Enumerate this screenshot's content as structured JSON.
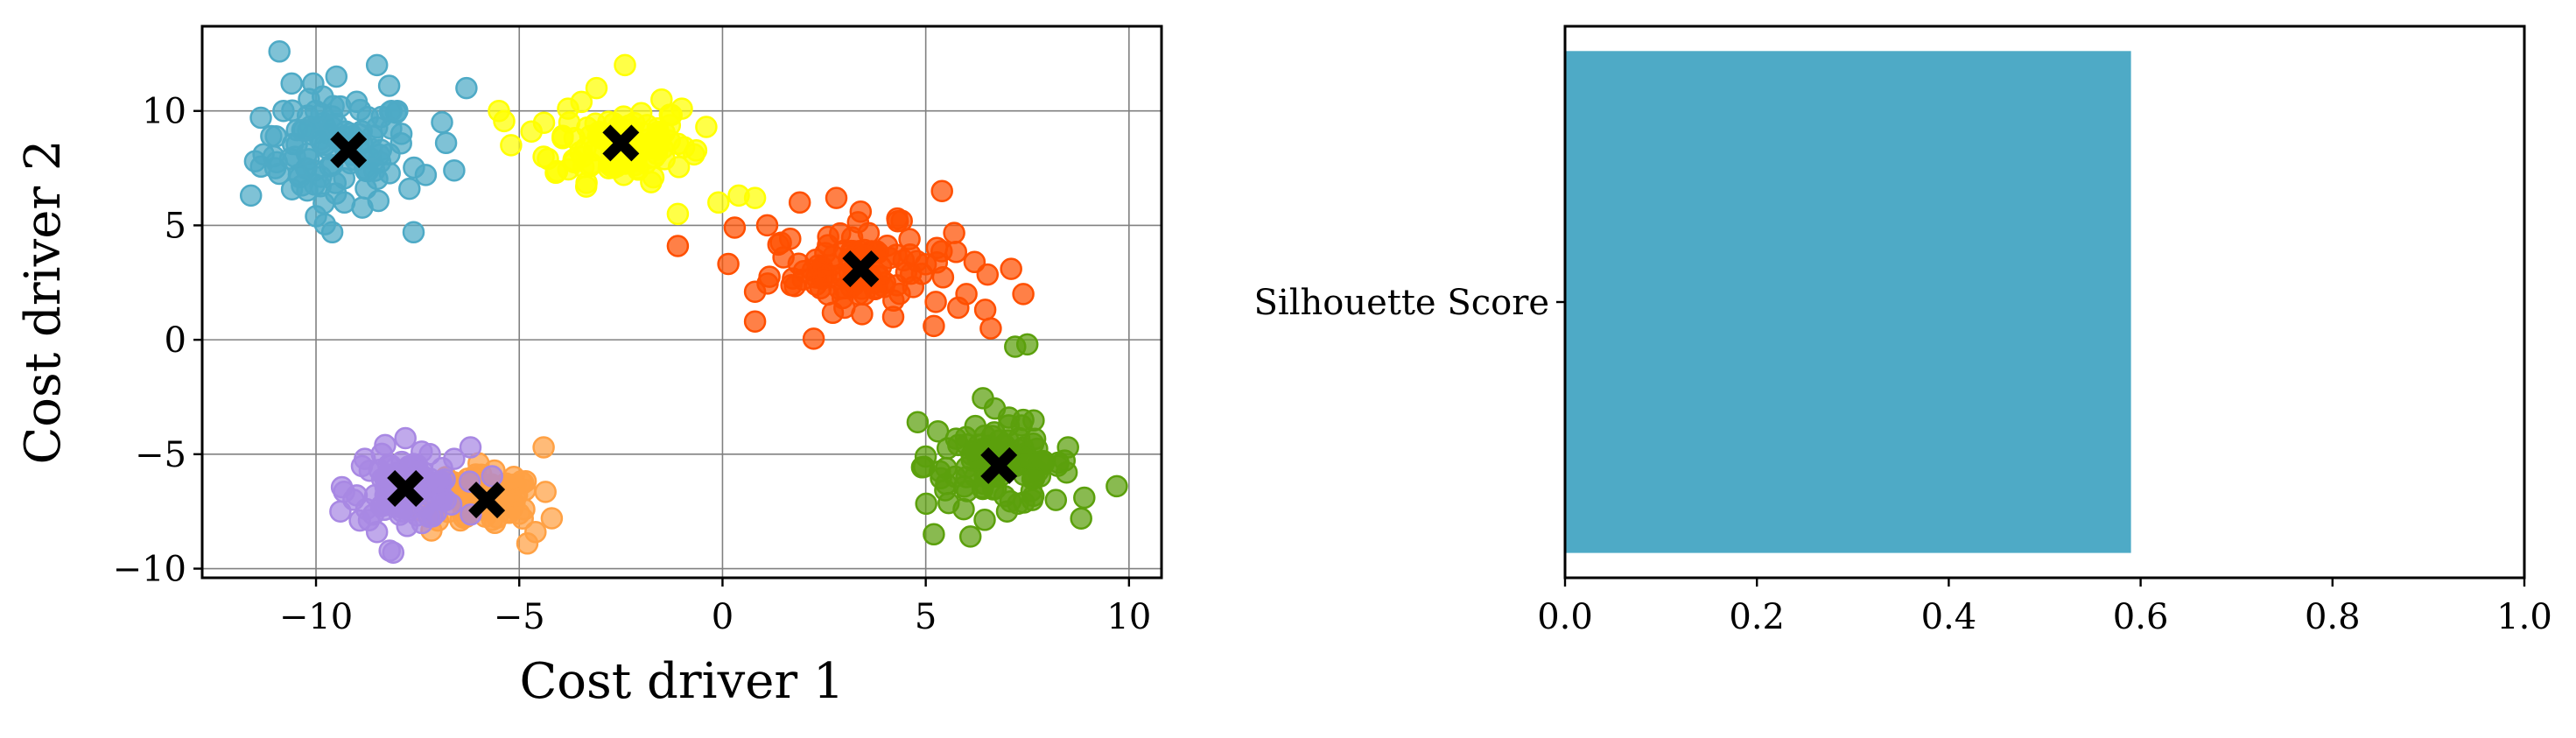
{
  "chart_data": [
    {
      "type": "scatter",
      "xlabel": "Cost driver 1",
      "ylabel": "Cost driver 2",
      "xlim": [
        -12.8,
        10.8
      ],
      "ylim": [
        -10.4,
        13.7
      ],
      "xticks": [
        -10,
        -5,
        0,
        5,
        10
      ],
      "xtick_labels": [
        "−10",
        "−5",
        "0",
        "5",
        "10"
      ],
      "yticks": [
        -10,
        -5,
        0,
        5,
        10
      ],
      "ytick_labels": [
        "−10",
        "−5",
        "0",
        "5",
        "10"
      ],
      "grid": true,
      "series": [
        {
          "color": "#4eaac6",
          "center_xy": [
            -9.5,
            8.2
          ],
          "spread": [
            1.2,
            1.6
          ],
          "points": [
            [
              -11.6,
              6.3
            ],
            [
              -11.5,
              7.8
            ],
            [
              -11.1,
              8.9
            ],
            [
              -10.9,
              12.6
            ],
            [
              -10.6,
              11.2
            ],
            [
              -10.2,
              9.8
            ],
            [
              -10.0,
              5.4
            ],
            [
              -9.6,
              4.7
            ],
            [
              -9.3,
              6.0
            ],
            [
              -9.0,
              10.4
            ],
            [
              -8.5,
              12.0
            ],
            [
              -8.2,
              11.1
            ],
            [
              -7.9,
              9.0
            ],
            [
              -7.6,
              4.7
            ],
            [
              -7.3,
              7.2
            ],
            [
              -6.9,
              9.5
            ],
            [
              -6.6,
              7.4
            ],
            [
              -6.3,
              11.0
            ],
            [
              -10.4,
              7.1
            ],
            [
              -9.8,
              9.3
            ],
            [
              -8.8,
              7.5
            ],
            [
              -8.4,
              8.3
            ],
            [
              -7.7,
              6.6
            ],
            [
              -10.8,
              10.0
            ],
            [
              -9.1,
              8.9
            ],
            [
              -8.0,
              10.0
            ],
            [
              -6.8,
              8.6
            ],
            [
              -11.0,
              7.5
            ],
            [
              -9.5,
              11.5
            ]
          ]
        },
        {
          "color": "#ffff00",
          "center_xy": [
            -2.5,
            8.6
          ],
          "spread": [
            1.1,
            1.1
          ],
          "points": [
            [
              -5.2,
              8.5
            ],
            [
              -4.7,
              9.1
            ],
            [
              -4.1,
              7.3
            ],
            [
              -3.8,
              10.1
            ],
            [
              -3.5,
              8.2
            ],
            [
              -3.1,
              11.0
            ],
            [
              -2.8,
              7.5
            ],
            [
              -2.4,
              12.0
            ],
            [
              -2.0,
              9.9
            ],
            [
              -1.7,
              7.1
            ],
            [
              -1.3,
              8.7
            ],
            [
              -1.0,
              10.1
            ],
            [
              -0.7,
              8.1
            ],
            [
              -0.4,
              9.3
            ],
            [
              -0.1,
              6.0
            ],
            [
              0.4,
              6.3
            ],
            [
              0.8,
              6.2
            ],
            [
              -1.1,
              5.5
            ],
            [
              -5.5,
              10.0
            ],
            [
              -3.0,
              9.0
            ],
            [
              -2.2,
              8.2
            ],
            [
              -1.5,
              10.5
            ],
            [
              -4.4,
              8.0
            ]
          ]
        },
        {
          "color": "#ff4f00",
          "center_xy": [
            3.4,
            3.1
          ],
          "spread": [
            1.5,
            1.2
          ],
          "points": [
            [
              0.3,
              4.9
            ],
            [
              0.8,
              2.1
            ],
            [
              1.1,
              5.0
            ],
            [
              1.5,
              3.6
            ],
            [
              1.9,
              6.0
            ],
            [
              2.3,
              2.4
            ],
            [
              2.6,
              4.5
            ],
            [
              3.0,
              1.4
            ],
            [
              3.4,
              5.6
            ],
            [
              3.8,
              2.8
            ],
            [
              4.2,
              1.0
            ],
            [
              4.6,
              4.4
            ],
            [
              5.0,
              3.3
            ],
            [
              5.4,
              6.5
            ],
            [
              5.8,
              1.4
            ],
            [
              6.2,
              3.4
            ],
            [
              6.6,
              0.5
            ],
            [
              7.1,
              3.1
            ],
            [
              7.4,
              2.0
            ],
            [
              -1.1,
              4.1
            ],
            [
              0.8,
              0.8
            ],
            [
              2.0,
              3.0
            ],
            [
              3.0,
              3.9
            ],
            [
              4.0,
              2.5
            ],
            [
              5.2,
              0.6
            ],
            [
              6.0,
              2.0
            ],
            [
              2.8,
              6.2
            ],
            [
              4.3,
              5.3
            ]
          ]
        },
        {
          "color": "#5ba00c",
          "center_xy": [
            6.8,
            -5.5
          ],
          "spread": [
            1.2,
            1.2
          ],
          "points": [
            [
              4.8,
              -3.6
            ],
            [
              5.0,
              -5.1
            ],
            [
              5.2,
              -8.5
            ],
            [
              5.5,
              -6.3
            ],
            [
              5.8,
              -4.6
            ],
            [
              6.1,
              -8.6
            ],
            [
              6.4,
              -5.5
            ],
            [
              6.7,
              -3.0
            ],
            [
              7.0,
              -7.5
            ],
            [
              7.3,
              -4.3
            ],
            [
              7.6,
              -6.6
            ],
            [
              7.9,
              -5.3
            ],
            [
              8.2,
              -7.0
            ],
            [
              8.5,
              -4.7
            ],
            [
              8.9,
              -6.9
            ],
            [
              9.7,
              -6.4
            ],
            [
              7.2,
              -0.3
            ],
            [
              7.5,
              -0.2
            ],
            [
              6.0,
              -6.0
            ],
            [
              6.9,
              -5.0
            ],
            [
              7.4,
              -3.5
            ],
            [
              5.3,
              -4.0
            ]
          ]
        },
        {
          "color": "#ffa144",
          "center_xy": [
            -5.8,
            -7.0
          ],
          "spread": [
            0.8,
            0.7
          ],
          "points": [
            [
              -7.0,
              -7.9
            ],
            [
              -6.6,
              -6.4
            ],
            [
              -6.3,
              -7.5
            ],
            [
              -6.0,
              -5.4
            ],
            [
              -5.6,
              -8.0
            ],
            [
              -5.3,
              -6.8
            ],
            [
              -5.0,
              -7.6
            ],
            [
              -4.8,
              -8.9
            ],
            [
              -4.4,
              -4.7
            ],
            [
              -4.2,
              -7.8
            ],
            [
              -4.6,
              -8.4
            ],
            [
              -6.8,
              -6.0
            ],
            [
              -5.9,
              -6.9
            ],
            [
              -5.5,
              -7.3
            ]
          ]
        },
        {
          "color": "#a888e3",
          "center_xy": [
            -7.8,
            -6.5
          ],
          "spread": [
            0.9,
            0.9
          ],
          "points": [
            [
              -9.4,
              -7.5
            ],
            [
              -9.0,
              -6.8
            ],
            [
              -8.8,
              -5.2
            ],
            [
              -8.5,
              -8.4
            ],
            [
              -8.3,
              -4.6
            ],
            [
              -8.1,
              -9.3
            ],
            [
              -7.8,
              -4.3
            ],
            [
              -7.6,
              -6.0
            ],
            [
              -7.2,
              -5.0
            ],
            [
              -6.9,
              -7.0
            ],
            [
              -6.6,
              -5.2
            ],
            [
              -6.2,
              -4.7
            ],
            [
              -8.0,
              -7.2
            ],
            [
              -7.4,
              -6.5
            ]
          ]
        }
      ],
      "centroids": {
        "color": "#000000",
        "points": [
          [
            -9.2,
            8.3
          ],
          [
            -2.5,
            8.6
          ],
          [
            3.4,
            3.1
          ],
          [
            6.8,
            -5.5
          ],
          [
            -5.8,
            -7.0
          ],
          [
            -7.8,
            -6.5
          ]
        ]
      }
    },
    {
      "type": "bar",
      "orientation": "horizontal",
      "categories": [
        "Silhouette Score"
      ],
      "values": [
        0.59
      ],
      "color": "#4eaac6",
      "xlim": [
        0.0,
        1.0
      ],
      "xticks": [
        0.0,
        0.2,
        0.4,
        0.6,
        0.8,
        1.0
      ],
      "xtick_labels": [
        "0.0",
        "0.2",
        "0.4",
        "0.6",
        "0.8",
        "1.0"
      ],
      "xlabel": "",
      "ylabel": "",
      "grid": false
    }
  ]
}
